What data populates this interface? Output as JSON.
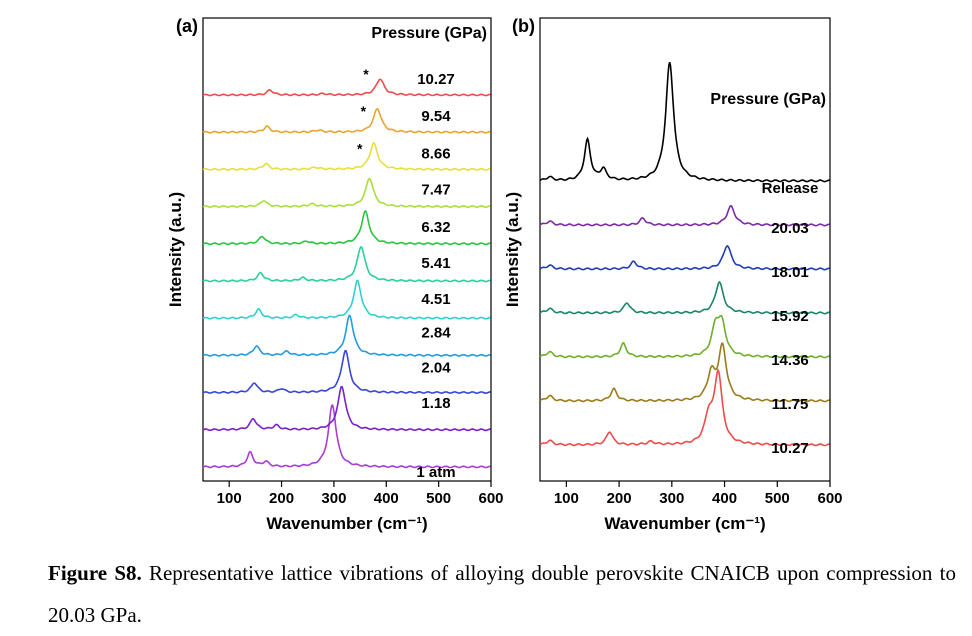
{
  "chart_data": [
    {
      "panel": "(a)",
      "type": "line",
      "title": "",
      "xlabel": "Wavenumber (cm⁻¹)",
      "ylabel": "Intensity (a.u.)",
      "xlim": [
        50,
        600
      ],
      "xticks": [
        100,
        200,
        300,
        400,
        500,
        600
      ],
      "legend_title": "Pressure (GPa)",
      "series": [
        {
          "name": "1 atm",
          "color": "#a93bd6",
          "baseline": 0,
          "peaks": [
            [
              140,
              0.23
            ],
            [
              170,
              0.08
            ],
            [
              297,
              1.0
            ]
          ],
          "labels": [],
          "x": [
            50,
            100,
            140,
            170,
            200,
            260,
            297,
            330,
            400,
            500,
            600
          ]
        },
        {
          "name": "1.18",
          "color": "#7a1fc9",
          "baseline": 1,
          "peaks": [
            [
              146,
              0.18
            ],
            [
              190,
              0.07
            ],
            [
              315,
              0.7
            ]
          ]
        },
        {
          "name": "2.04",
          "color": "#3846d8",
          "baseline": 2,
          "peaks": [
            [
              148,
              0.16
            ],
            [
              200,
              0.06
            ],
            [
              322,
              0.68
            ]
          ]
        },
        {
          "name": "2.84",
          "color": "#239be0",
          "baseline": 3,
          "peaks": [
            [
              152,
              0.15
            ],
            [
              210,
              0.06
            ],
            [
              330,
              0.64
            ]
          ]
        },
        {
          "name": "4.51",
          "color": "#2fd0d0",
          "baseline": 4,
          "peaks": [
            [
              156,
              0.14
            ],
            [
              228,
              0.05
            ],
            [
              345,
              0.6
            ]
          ]
        },
        {
          "name": "5.41",
          "color": "#2bcf9b",
          "baseline": 5,
          "peaks": [
            [
              160,
              0.13
            ],
            [
              240,
              0.05
            ],
            [
              352,
              0.56
            ]
          ]
        },
        {
          "name": "6.32",
          "color": "#28c640",
          "baseline": 6,
          "peaks": [
            [
              163,
              0.12
            ],
            [
              248,
              0.04
            ],
            [
              360,
              0.52
            ]
          ]
        },
        {
          "name": "7.47",
          "color": "#a7df3c",
          "baseline": 7,
          "peaks": [
            [
              166,
              0.1
            ],
            [
              258,
              0.04
            ],
            [
              368,
              0.46
            ]
          ]
        },
        {
          "name": "8.66",
          "color": "#e7df3a",
          "baseline": 8,
          "peaks": [
            [
              170,
              0.09
            ],
            [
              265,
              0.03
            ],
            [
              376,
              0.42
            ]
          ],
          "marker": "*"
        },
        {
          "name": "9.54",
          "color": "#e7a530",
          "baseline": 9,
          "peaks": [
            [
              172,
              0.09
            ],
            [
              270,
              0.03
            ],
            [
              383,
              0.38
            ]
          ],
          "marker": "*"
        },
        {
          "name": "10.27",
          "color": "#f04a4a",
          "baseline": 10,
          "peaks": [
            [
              178,
              0.08
            ],
            [
              280,
              0.02
            ],
            [
              388,
              0.26
            ]
          ],
          "marker": "*"
        }
      ]
    },
    {
      "panel": "(b)",
      "type": "line",
      "title": "",
      "xlabel": "Wavenumber (cm⁻¹)",
      "ylabel": "Intensity (a.u.)",
      "xlim": [
        50,
        600
      ],
      "xticks": [
        100,
        200,
        300,
        400,
        500,
        600
      ],
      "legend_title": "Pressure (GPa)",
      "series": [
        {
          "name": "10.27",
          "color": "#f04a4a",
          "baseline": 0,
          "peaks": [
            [
              68,
              0.06
            ],
            [
              182,
              0.18
            ],
            [
              260,
              0.04
            ],
            [
              370,
              0.35
            ],
            [
              388,
              0.95
            ]
          ]
        },
        {
          "name": "11.75",
          "color": "#9a7a1c",
          "baseline": 1,
          "peaks": [
            [
              68,
              0.07
            ],
            [
              190,
              0.16
            ],
            [
              375,
              0.35
            ],
            [
              396,
              0.72
            ]
          ]
        },
        {
          "name": "14.36",
          "color": "#6fae2a",
          "baseline": 2,
          "peaks": [
            [
              68,
              0.07
            ],
            [
              208,
              0.18
            ],
            [
              383,
              0.38
            ],
            [
              395,
              0.4
            ]
          ]
        },
        {
          "name": "15.92",
          "color": "#19866a",
          "baseline": 3,
          "peaks": [
            [
              68,
              0.06
            ],
            [
              215,
              0.14
            ],
            [
              390,
              0.42
            ]
          ]
        },
        {
          "name": "18.01",
          "color": "#1f3cb8",
          "baseline": 4,
          "peaks": [
            [
              68,
              0.05
            ],
            [
              228,
              0.1
            ],
            [
              405,
              0.32
            ]
          ]
        },
        {
          "name": "20.03",
          "color": "#7a2aa6",
          "baseline": 5,
          "peaks": [
            [
              68,
              0.05
            ],
            [
              245,
              0.09
            ],
            [
              412,
              0.25
            ]
          ]
        },
        {
          "name": "Release",
          "color": "#000000",
          "baseline": 6,
          "peaks": [
            [
              68,
              0.05
            ],
            [
              140,
              0.55
            ],
            [
              170,
              0.15
            ],
            [
              296,
              1.6
            ]
          ]
        }
      ]
    }
  ],
  "caption": {
    "label": "Figure S8.",
    "text": " Representative lattice vibrations of alloying double perovskite CNAICB upon compression to 20.03 GPa."
  }
}
